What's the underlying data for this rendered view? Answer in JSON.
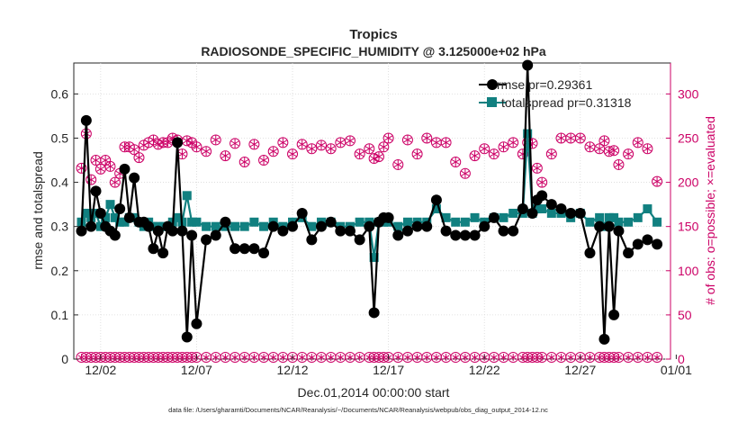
{
  "chart_data": {
    "type": "line",
    "title": "Tropics",
    "subtitle": "RADIOSONDE_SPECIFIC_HUMIDITY @ 3.125000e+02 hPa",
    "xlabel": "Dec.01,2014 00:00:00 start",
    "ylabel": "rmse and totalspread",
    "y2label": "# of obs: o=possible; ×=evaluated",
    "footer": "data file: /Users/gharamti/Documents/NCAR/Reanalysis/~/Documents/NCAR/Reanalysis/webpub/obs_diag_output_2014-12.nc",
    "xlim": [
      0.6,
      31.7
    ],
    "ylim": [
      0,
      0.67
    ],
    "y2lim": [
      0,
      335
    ],
    "xticks": [
      {
        "v": 2,
        "label": "12/02"
      },
      {
        "v": 7,
        "label": "12/07"
      },
      {
        "v": 12,
        "label": "12/12"
      },
      {
        "v": 17,
        "label": "12/17"
      },
      {
        "v": 22,
        "label": "12/22"
      },
      {
        "v": 27,
        "label": "12/27"
      },
      {
        "v": 32,
        "label": "01/01"
      }
    ],
    "yticks": [
      {
        "v": 0,
        "label": "0"
      },
      {
        "v": 0.1,
        "label": "0.1"
      },
      {
        "v": 0.2,
        "label": "0.2"
      },
      {
        "v": 0.3,
        "label": "0.3"
      },
      {
        "v": 0.4,
        "label": "0.4"
      },
      {
        "v": 0.5,
        "label": "0.5"
      },
      {
        "v": 0.6,
        "label": "0.6"
      }
    ],
    "y2ticks": [
      {
        "v": 0,
        "label": "0"
      },
      {
        "v": 50,
        "label": "50"
      },
      {
        "v": 100,
        "label": "100"
      },
      {
        "v": 150,
        "label": "150"
      },
      {
        "v": 200,
        "label": "200"
      },
      {
        "v": 250,
        "label": "250"
      },
      {
        "v": 300,
        "label": "300"
      }
    ],
    "legend_position": "top-right",
    "x": [
      1,
      1.25,
      1.5,
      1.75,
      2,
      2.25,
      2.5,
      2.75,
      3,
      3.25,
      3.5,
      3.75,
      4,
      4.25,
      4.5,
      4.75,
      5,
      5.25,
      5.5,
      5.75,
      6,
      6.25,
      6.5,
      6.75,
      7,
      7.5,
      8,
      8.5,
      9,
      9.5,
      10,
      10.5,
      11,
      11.5,
      12,
      12.5,
      13,
      13.5,
      14,
      14.5,
      15,
      15.5,
      16,
      16.25,
      16.5,
      16.75,
      17,
      17.5,
      18,
      18.5,
      19,
      19.5,
      20,
      20.5,
      21,
      21.5,
      22,
      22.5,
      23,
      23.5,
      24,
      24.25,
      24.5,
      24.75,
      25,
      25.5,
      26,
      26.5,
      27,
      27.5,
      28,
      28.25,
      28.5,
      28.75,
      29,
      29.5,
      30,
      30.5,
      31
    ],
    "series": [
      {
        "name": "rmse",
        "legend": "rmse pr=0.29361",
        "color": "#000000",
        "marker": "circle",
        "values": [
          0.29,
          0.54,
          0.3,
          0.38,
          0.33,
          0.3,
          0.29,
          0.28,
          0.34,
          0.43,
          0.32,
          0.41,
          0.31,
          0.31,
          0.3,
          0.25,
          0.29,
          0.24,
          0.3,
          0.29,
          0.49,
          0.29,
          0.05,
          0.28,
          0.08,
          0.27,
          0.28,
          0.31,
          0.25,
          0.25,
          0.25,
          0.24,
          0.3,
          0.29,
          0.3,
          0.33,
          0.27,
          0.3,
          0.31,
          0.29,
          0.29,
          0.27,
          0.3,
          0.105,
          0.31,
          0.32,
          0.32,
          0.28,
          0.29,
          0.3,
          0.3,
          0.36,
          0.29,
          0.28,
          0.28,
          0.28,
          0.3,
          0.32,
          0.29,
          0.29,
          0.34,
          0.665,
          0.33,
          0.36,
          0.37,
          0.35,
          0.34,
          0.33,
          0.33,
          0.24,
          0.3,
          0.045,
          0.3,
          0.1,
          0.29,
          0.24,
          0.26,
          0.27,
          0.26
        ]
      },
      {
        "name": "totalspread",
        "legend": "totalspread pr=0.31318",
        "color": "#118080",
        "marker": "square",
        "values": [
          0.31,
          0.33,
          0.32,
          0.33,
          0.3,
          0.32,
          0.35,
          0.32,
          0.31,
          0.31,
          0.32,
          0.32,
          0.31,
          0.3,
          0.31,
          0.3,
          0.3,
          0.3,
          0.3,
          0.31,
          0.32,
          0.31,
          0.37,
          0.31,
          0.31,
          0.3,
          0.3,
          0.3,
          0.3,
          0.3,
          0.31,
          0.3,
          0.31,
          0.3,
          0.31,
          0.32,
          0.3,
          0.31,
          0.31,
          0.3,
          0.3,
          0.31,
          0.31,
          0.23,
          0.31,
          0.31,
          0.31,
          0.3,
          0.31,
          0.31,
          0.31,
          0.34,
          0.32,
          0.31,
          0.31,
          0.32,
          0.31,
          0.32,
          0.32,
          0.33,
          0.33,
          0.51,
          0.33,
          0.34,
          0.34,
          0.33,
          0.33,
          0.32,
          0.33,
          0.31,
          0.32,
          0.3,
          0.32,
          0.32,
          0.31,
          0.31,
          0.32,
          0.34,
          0.31
        ]
      }
    ],
    "possible_counts": [
      216,
      255,
      203,
      225,
      215,
      225,
      218,
      200,
      210,
      240,
      240,
      237,
      228,
      242,
      245,
      248,
      243,
      245,
      245,
      250,
      248,
      232,
      247,
      245,
      240,
      235,
      248,
      230,
      244,
      223,
      243,
      225,
      235,
      245,
      232,
      243,
      238,
      242,
      238,
      245,
      247,
      232,
      238,
      227,
      229,
      240,
      250,
      220,
      248,
      232,
      250,
      245,
      245,
      223,
      210,
      230,
      238,
      232,
      240,
      245,
      232,
      245,
      244,
      216,
      200,
      232,
      250,
      250,
      250,
      240,
      238,
      247,
      235,
      236,
      220,
      232,
      245,
      238,
      201
    ],
    "evaluated_counts": [
      216,
      255,
      203,
      225,
      215,
      225,
      218,
      200,
      210,
      240,
      240,
      237,
      228,
      242,
      245,
      248,
      243,
      245,
      245,
      250,
      248,
      232,
      247,
      245,
      240,
      235,
      248,
      230,
      244,
      223,
      243,
      225,
      235,
      245,
      232,
      243,
      238,
      242,
      238,
      245,
      247,
      232,
      238,
      227,
      229,
      240,
      250,
      220,
      248,
      232,
      250,
      245,
      245,
      223,
      210,
      230,
      238,
      232,
      240,
      245,
      232,
      245,
      244,
      216,
      200,
      232,
      250,
      250,
      250,
      240,
      238,
      247,
      235,
      236,
      220,
      232,
      245,
      238,
      201
    ],
    "zero_counts_possible": [
      2,
      2,
      2,
      2,
      2,
      2,
      2,
      2,
      2,
      2,
      2,
      2,
      2,
      2,
      2,
      2,
      2,
      2,
      2,
      2,
      2,
      2,
      2,
      2,
      2,
      2,
      2,
      2,
      2,
      2,
      2,
      2,
      2,
      2,
      2,
      2,
      2,
      2,
      2,
      2,
      2,
      2,
      2,
      2,
      2,
      2,
      2,
      2,
      2,
      2,
      2,
      2,
      2,
      2,
      2,
      2,
      2,
      2,
      2,
      2,
      2,
      2,
      2,
      2,
      2,
      2,
      2,
      2,
      2,
      2,
      2,
      2,
      2,
      2,
      2,
      2,
      2,
      2,
      2
    ]
  },
  "colors": {
    "rmse": "#000000",
    "spread": "#118080",
    "counts": "#cc0066",
    "axis": "#262626"
  }
}
